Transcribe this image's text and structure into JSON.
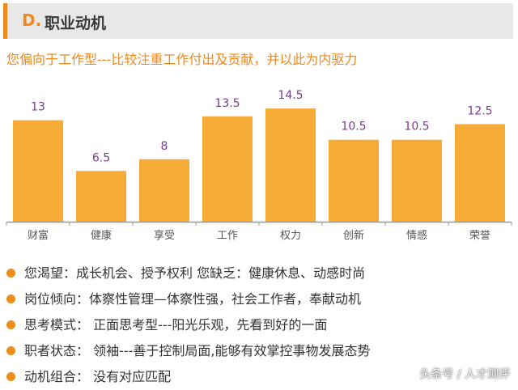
{
  "header": {
    "letter": "D.",
    "title": "职业动机"
  },
  "subtitle": "您偏向于工作型---比较注重工作付出及贡献，并以此为内驱力",
  "chart_data": {
    "type": "bar",
    "categories": [
      "财富",
      "健康",
      "享受",
      "工作",
      "权力",
      "创新",
      "情感",
      "荣誉"
    ],
    "values": [
      13,
      6.5,
      8,
      13.5,
      14.5,
      10.5,
      10.5,
      12.5
    ],
    "value_labels": [
      "13",
      "6.5",
      "8",
      "13.5",
      "14.5",
      "10.5",
      "10.5",
      "12.5"
    ],
    "ylim": [
      0,
      17
    ],
    "grid": false,
    "colors": {
      "bar": "#f5ab35",
      "label": "#7a3b8f",
      "axis": "#9a9a9a",
      "tick": "#555555"
    }
  },
  "bullets": [
    "您渴望：成长机会、授予权利 您缺乏：健康休息、动感时尚",
    "岗位倾向：体察性管理—体察性强，社会工作者，奉献动机",
    "思考模式： 正面思考型---阳光乐观，先看到好的一面",
    "职者状态： 领袖---善于控制局面,能够有效掌控事物发展态势",
    "动机组合： 没有对应匹配"
  ],
  "watermark": "头条号 / 人才测评"
}
